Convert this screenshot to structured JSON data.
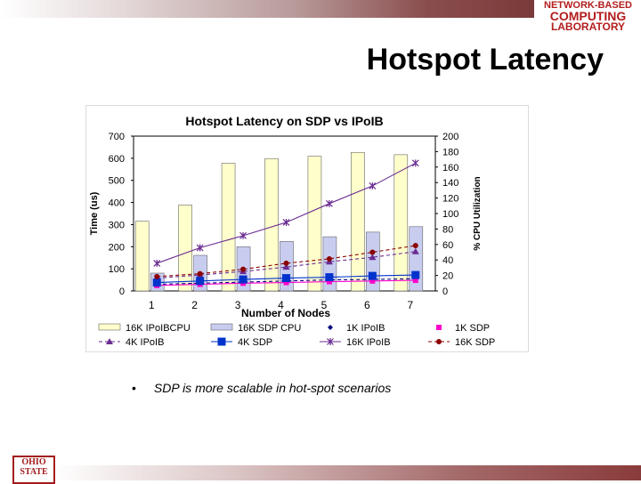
{
  "slide": {
    "title": "Hotspot Latency",
    "bullet": "SDP is more scalable in hot-spot scenarios",
    "lab_logo_lines": [
      "NETWORK-BASED",
      "COMPUTING",
      "LABORATORY"
    ],
    "university_logo_lines": [
      "OHIO",
      "STATE"
    ],
    "accent_color": "#8a3b3b",
    "logo_color": "#b31d1d"
  },
  "chart_data": {
    "type": "bar",
    "title": "Hotspot Latency on SDP vs IPoIB",
    "xlabel": "Number of Nodes",
    "ylabel": "Time (us)",
    "y2label": "% CPU Utilization",
    "categories": [
      "1",
      "2",
      "3",
      "4",
      "5",
      "6",
      "7"
    ],
    "ylim": [
      0,
      700
    ],
    "yticks": [
      0,
      100,
      200,
      300,
      400,
      500,
      600,
      700
    ],
    "y2lim": [
      0,
      200
    ],
    "y2ticks": [
      0,
      20,
      40,
      60,
      80,
      100,
      120,
      140,
      160,
      180,
      200
    ],
    "grid": false,
    "legend_position": "bottom",
    "bar_series": [
      {
        "name": "16K IPoIBCPU",
        "axis": "right",
        "color": "#ffffcc",
        "values": [
          90,
          111,
          165,
          171,
          174,
          179,
          176
        ]
      },
      {
        "name": "16K SDP CPU",
        "axis": "right",
        "color": "#c8cdf0",
        "values": [
          23,
          46,
          57,
          64,
          70,
          76,
          83
        ]
      }
    ],
    "line_series": [
      {
        "name": "1K IPoIB",
        "axis": "left",
        "color": "#000080",
        "marker": "diamond",
        "dash": "4,3",
        "values": [
          30,
          35,
          40,
          45,
          50,
          52,
          55
        ]
      },
      {
        "name": "1K SDP",
        "axis": "left",
        "color": "#ff00cc",
        "marker": "square",
        "dash": "",
        "values": [
          25,
          30,
          35,
          38,
          42,
          45,
          48
        ]
      },
      {
        "name": "4K IPoIB",
        "axis": "left",
        "color": "#6a2c91",
        "marker": "triangle",
        "dash": "4,3",
        "values": [
          58,
          72,
          88,
          108,
          132,
          152,
          178
        ]
      },
      {
        "name": "4K SDP",
        "axis": "left",
        "color": "#0033cc",
        "marker": "square-big",
        "dash": "",
        "values": [
          38,
          45,
          52,
          58,
          62,
          68,
          72
        ]
      },
      {
        "name": "16K IPoIB",
        "axis": "left",
        "color": "#6a2c91",
        "marker": "star",
        "dash": "",
        "values": [
          125,
          195,
          250,
          310,
          395,
          475,
          578
        ]
      },
      {
        "name": "16K SDP",
        "axis": "left",
        "color": "#8b0000",
        "marker": "circle",
        "dash": "4,3",
        "values": [
          65,
          78,
          98,
          125,
          145,
          175,
          205
        ]
      }
    ]
  }
}
